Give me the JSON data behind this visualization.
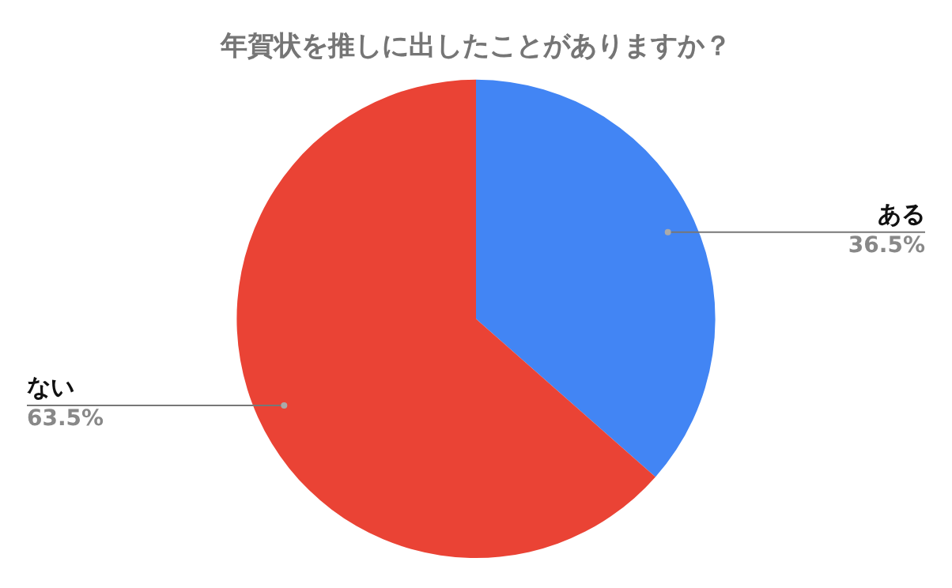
{
  "chart_data": {
    "type": "pie",
    "title": "年賀状を推しに出したことがありますか？",
    "categories": [
      "ある",
      "ない"
    ],
    "values": [
      36.5,
      63.5
    ],
    "value_labels": [
      "36.5%",
      "63.5%"
    ],
    "colors": [
      "#4285f4",
      "#ea4335"
    ],
    "legend": false
  }
}
